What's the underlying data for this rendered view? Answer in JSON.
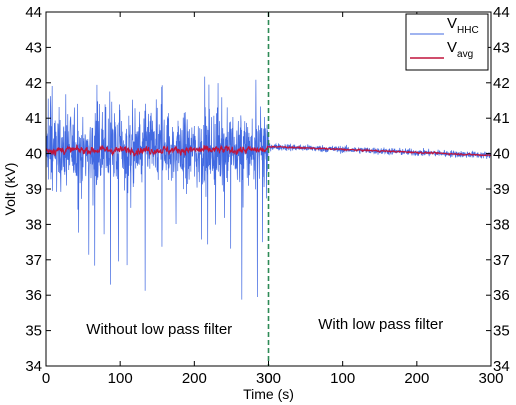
{
  "chart_data": {
    "type": "line",
    "xlabel": "Time (s)",
    "ylabel": "Volt (kV)",
    "ylim": [
      34,
      44
    ],
    "y_ticks": [
      34,
      35,
      36,
      37,
      38,
      39,
      40,
      41,
      42,
      43,
      44
    ],
    "panels": [
      {
        "xlim": [
          0,
          300
        ],
        "x_ticks": [
          0,
          100,
          200,
          300
        ],
        "annotation": "Without low pass filter",
        "series": [
          {
            "name": "V_HHC",
            "mean": 40.1,
            "spread": 0.75,
            "min": 35.8,
            "max": 42.3
          },
          {
            "name": "V_avg",
            "mean": 40.1,
            "spread": 0.15
          }
        ]
      },
      {
        "xlim": [
          0,
          300
        ],
        "x_ticks": [
          0,
          100,
          200,
          300
        ],
        "annotation": "With low pass filter",
        "series": [
          {
            "name": "V_HHC",
            "start": 40.2,
            "end": 39.95,
            "spread": 0.07
          },
          {
            "name": "V_avg",
            "start": 40.2,
            "end": 39.95,
            "spread": 0.03
          }
        ]
      }
    ],
    "legend": {
      "placement": "top-right",
      "entries": [
        {
          "main": "V",
          "sub": "HHC",
          "color": "#4169e1"
        },
        {
          "main": "V",
          "sub": "avg",
          "color": "#c0143c"
        }
      ]
    },
    "divider_color": "#2e8b57",
    "grid": false
  }
}
